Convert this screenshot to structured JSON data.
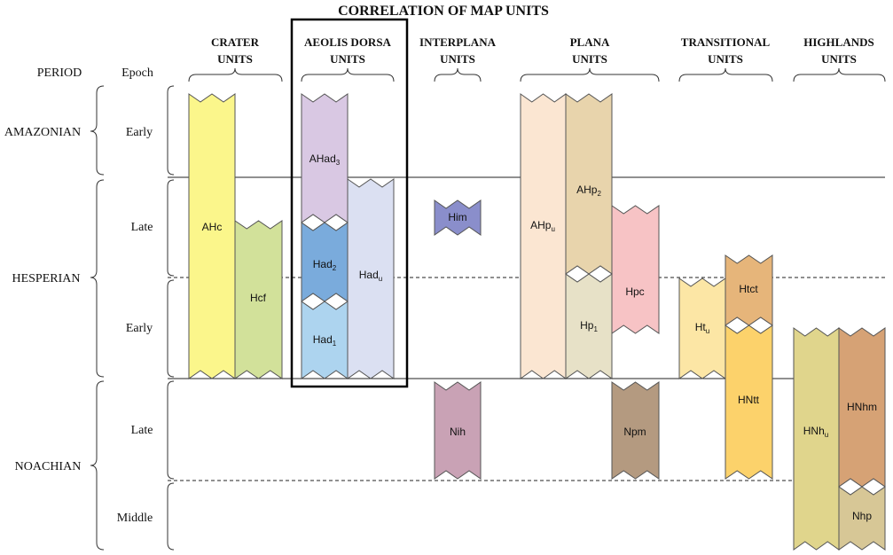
{
  "title": "CORRELATION OF MAP UNITS",
  "column_headers": {
    "crater": [
      "CRATER",
      "UNITS"
    ],
    "aeolis": [
      "AEOLIS DORSA",
      "UNITS"
    ],
    "interplana": [
      "INTERPLANA",
      "UNITS"
    ],
    "plana": [
      "PLANA",
      "UNITS"
    ],
    "transitional": [
      "TRANSITIONAL",
      "UNITS"
    ],
    "highlands": [
      "HIGHLANDS",
      "UNITS"
    ]
  },
  "period_header": "PERIOD",
  "epoch_header": "Epoch",
  "periods": {
    "amazonian": "AMAZONIAN",
    "hesperian": "HESPERIAN",
    "noachian": "NOACHIAN"
  },
  "epochs": {
    "am_early": "Early",
    "he_late": "Late",
    "he_early": "Early",
    "no_late": "Late",
    "no_middle": "Middle"
  },
  "units": {
    "AHc": {
      "label": "AHc",
      "color": "#fbf68b"
    },
    "Hcf": {
      "label": "Hcf",
      "color": "#d2e19a"
    },
    "AHad3": {
      "label": "AHad",
      "sub": "3",
      "color": "#d9c8e3"
    },
    "Had2": {
      "label": "Had",
      "sub": "2",
      "color": "#7aabdc"
    },
    "Had1": {
      "label": "Had",
      "sub": "1",
      "color": "#add4ef"
    },
    "Hadu": {
      "label": "Had",
      "sub": "u",
      "color": "#dbe0f2"
    },
    "Him": {
      "label": "Him",
      "color": "#8a8ecb"
    },
    "Nih": {
      "label": "Nih",
      "color": "#c9a2b5"
    },
    "AHpu": {
      "label": "AHp",
      "sub": "u",
      "color": "#fbe6d2"
    },
    "AHp2": {
      "label": "AHp",
      "sub": "2",
      "color": "#e8d4ac"
    },
    "Hp1": {
      "label": "Hp",
      "sub": "1",
      "color": "#e7e1c7"
    },
    "Hpc": {
      "label": "Hpc",
      "color": "#f7c3c5"
    },
    "Npm": {
      "label": "Npm",
      "color": "#b49a80"
    },
    "Htu": {
      "label": "Ht",
      "sub": "u",
      "color": "#fce6a5"
    },
    "Htct": {
      "label": "Htct",
      "color": "#e6b57a"
    },
    "HNtt": {
      "label": "HNtt",
      "color": "#fcd26b"
    },
    "HNhu": {
      "label": "HNh",
      "sub": "u",
      "color": "#e0d58c"
    },
    "HNhm": {
      "label": "HNhm",
      "color": "#d6a275"
    },
    "Nhp": {
      "label": "Nhp",
      "color": "#d7c796"
    }
  }
}
